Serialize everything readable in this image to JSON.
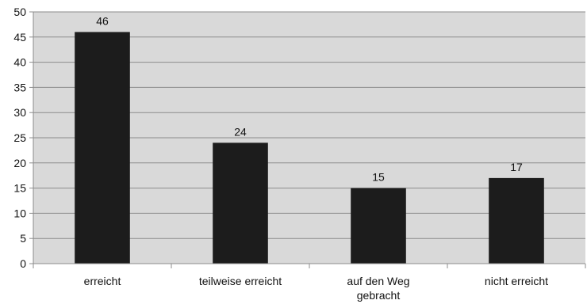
{
  "chart_data": {
    "type": "bar",
    "categories": [
      "erreicht",
      "teilweise erreicht",
      "auf den Weg\ngebracht",
      "nicht erreicht"
    ],
    "values": [
      46,
      24,
      15,
      17
    ],
    "data_labels": [
      "46",
      "24",
      "15",
      "17"
    ],
    "ylim": [
      0,
      50
    ],
    "yticks": [
      0,
      5,
      10,
      15,
      20,
      25,
      30,
      35,
      40,
      45,
      50
    ],
    "grid": true,
    "legend": "none",
    "colors": {
      "plot_background": "#d9d9d9",
      "bar": "#1c1c1c",
      "gridline": "#8c8c8c",
      "axis": "#8c8c8c"
    }
  }
}
